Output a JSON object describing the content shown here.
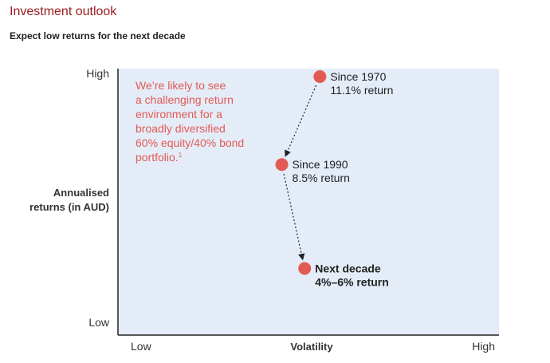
{
  "header": {
    "title": "Investment outlook",
    "subtitle": "Expect low returns for the next decade"
  },
  "colors": {
    "plot_background": "#e4ecf7",
    "point": "#e35a55",
    "annotation_text": "#e35a55",
    "axis": "#222222"
  },
  "chart_data": {
    "type": "scatter",
    "title": "",
    "xlabel": "Volatility",
    "ylabel": [
      "Annualised",
      "returns (in AUD)"
    ],
    "x_ticks": [
      "Low",
      "High"
    ],
    "y_ticks": [
      "High",
      "Low"
    ],
    "xlim": [
      0,
      100
    ],
    "ylim": [
      0,
      100
    ],
    "grid": false,
    "points": [
      {
        "x": 53,
        "y": 97,
        "label": [
          "Since 1970",
          "11.1% return"
        ],
        "bold": false
      },
      {
        "x": 43,
        "y": 64,
        "label": [
          "Since 1990",
          "8.5% return"
        ],
        "bold": false
      },
      {
        "x": 49,
        "y": 25,
        "label": [
          "Next decade",
          "4%–6% return"
        ],
        "bold": true
      }
    ],
    "arrows": [
      {
        "from": 0,
        "to": 1,
        "style": "dotted"
      },
      {
        "from": 1,
        "to": 2,
        "style": "dotted"
      }
    ],
    "annotation": {
      "lines": [
        "We’re likely to see",
        "a challenging return",
        "environment for a",
        "broadly diversified",
        "60% equity/40% bond",
        "portfolio."
      ],
      "footnote_marker": "1"
    }
  }
}
